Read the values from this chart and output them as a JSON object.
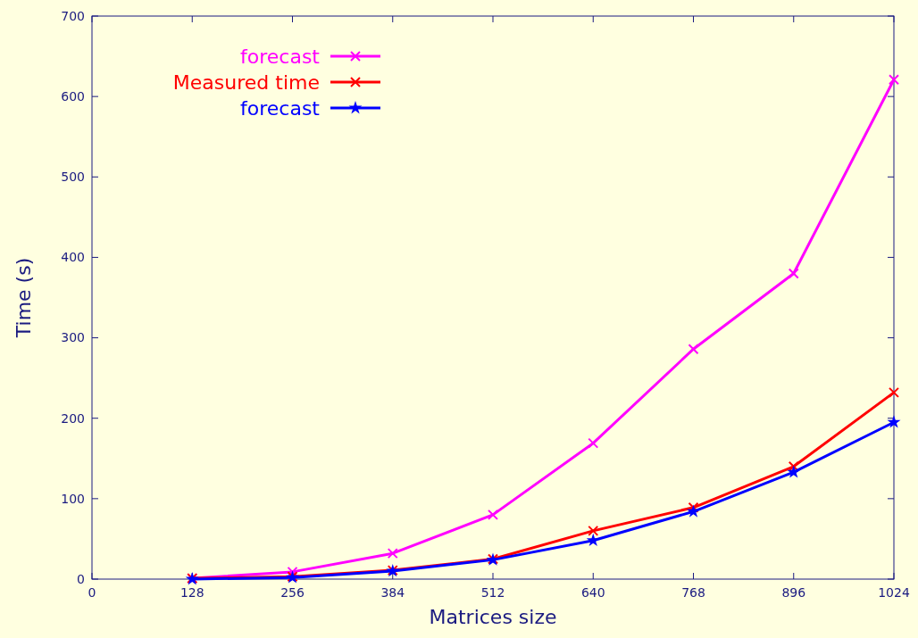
{
  "chart_data": {
    "type": "line",
    "xlabel": "Matrices size",
    "ylabel": "Time (s)",
    "x": [
      128,
      256,
      384,
      512,
      640,
      768,
      896,
      1024
    ],
    "xlim": [
      0,
      1024
    ],
    "xticks": [
      0,
      128,
      256,
      384,
      512,
      640,
      768,
      896,
      1024
    ],
    "ylim": [
      0,
      700
    ],
    "yticks": [
      0,
      100,
      200,
      300,
      400,
      500,
      600,
      700
    ],
    "legend": "top left",
    "grid": false,
    "series": [
      {
        "name": "forecast",
        "color": "#ff00ff",
        "marker": "cross",
        "values": [
          1,
          9,
          32,
          80,
          169,
          286,
          380,
          621
        ]
      },
      {
        "name": "Measured time",
        "color": "#ff0000",
        "marker": "cross",
        "values": [
          1,
          3,
          11,
          25,
          60,
          89,
          140,
          232
        ]
      },
      {
        "name": "forecast",
        "color": "#0000ff",
        "marker": "star",
        "values": [
          0,
          2,
          10,
          24,
          48,
          84,
          133,
          195
        ]
      }
    ]
  }
}
